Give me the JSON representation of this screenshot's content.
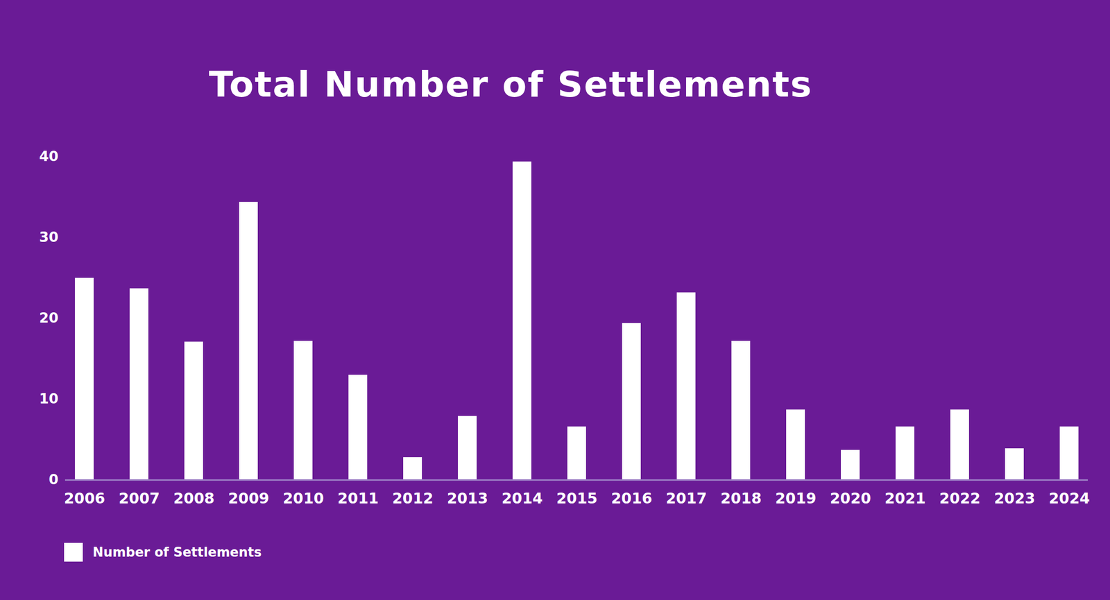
{
  "chart_data": {
    "type": "bar",
    "title": "Total Number of Settlements",
    "categories": [
      "2006",
      "2007",
      "2008",
      "2009",
      "2010",
      "2011",
      "2012",
      "2013",
      "2014",
      "2015",
      "2016",
      "2017",
      "2018",
      "2019",
      "2020",
      "2021",
      "2022",
      "2023",
      "2024"
    ],
    "series": [
      {
        "name": "Number of Settlements",
        "color": "#ffffff",
        "values": [
          25,
          23.7,
          17.1,
          34.4,
          17.2,
          13,
          2.8,
          7.9,
          39.4,
          6.6,
          19.4,
          23.2,
          17.2,
          8.7,
          3.7,
          6.6,
          8.7,
          3.9,
          6.6
        ]
      }
    ],
    "ylim": [
      0,
      40
    ],
    "yticks": [
      0,
      10,
      20,
      30,
      40
    ],
    "grid": false,
    "legend": "bottom-left"
  }
}
